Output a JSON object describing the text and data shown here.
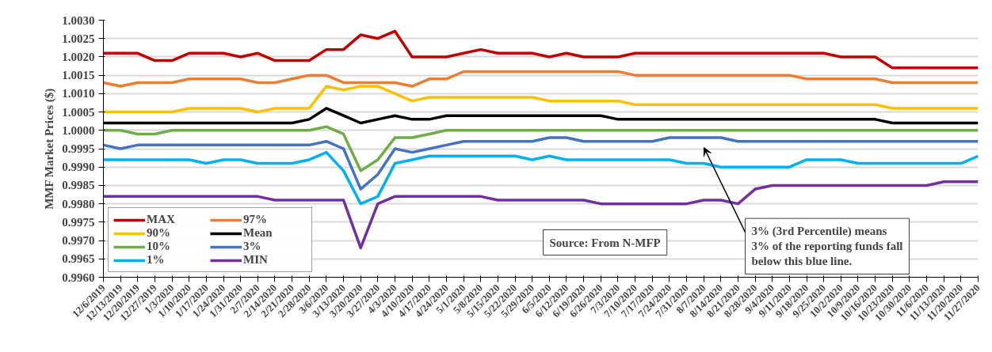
{
  "chart_data": {
    "type": "line",
    "ylabel": "MMF Market Prices ($)",
    "categories": [
      "12/6/2019",
      "12/13/2019",
      "12/20/2019",
      "12/27/2019",
      "1/3/2020",
      "1/10/2020",
      "1/17/2020",
      "1/24/2020",
      "1/31/2020",
      "2/7/2020",
      "2/14/2020",
      "2/21/2020",
      "2/28/2020",
      "3/6/2020",
      "3/13/2020",
      "3/20/2020",
      "3/27/2020",
      "4/3/2020",
      "4/10/2020",
      "4/17/2020",
      "4/24/2020",
      "5/1/2020",
      "5/8/2020",
      "5/15/2020",
      "5/22/2020",
      "5/29/2020",
      "6/5/2020",
      "6/12/2020",
      "6/19/2020",
      "6/26/2020",
      "7/3/2020",
      "7/10/2020",
      "7/17/2020",
      "7/24/2020",
      "7/31/2020",
      "8/7/2020",
      "8/14/2020",
      "8/21/2020",
      "8/28/2020",
      "9/4/2020",
      "9/11/2020",
      "9/18/2020",
      "9/25/2020",
      "10/2/2020",
      "10/9/2020",
      "10/16/2020",
      "10/23/2020",
      "10/30/2020",
      "11/6/2020",
      "11/13/2020",
      "11/20/2020",
      "11/27/2020"
    ],
    "series": [
      {
        "name": "MAX",
        "color": "#c00000",
        "values": [
          1.0021,
          1.0021,
          1.0021,
          1.0019,
          1.0019,
          1.0021,
          1.0021,
          1.0021,
          1.002,
          1.0021,
          1.0019,
          1.0019,
          1.0019,
          1.0022,
          1.0022,
          1.0026,
          1.0025,
          1.0027,
          1.002,
          1.002,
          1.002,
          1.0021,
          1.0022,
          1.0021,
          1.0021,
          1.0021,
          1.002,
          1.0021,
          1.002,
          1.002,
          1.002,
          1.0021,
          1.0021,
          1.0021,
          1.0021,
          1.0021,
          1.0021,
          1.0021,
          1.0021,
          1.0021,
          1.0021,
          1.0021,
          1.0021,
          1.002,
          1.002,
          1.002,
          1.0017,
          1.0017,
          1.0017,
          1.0017,
          1.0017,
          1.0017
        ]
      },
      {
        "name": "97%",
        "color": "#ed7d31",
        "values": [
          1.0013,
          1.0012,
          1.0013,
          1.0013,
          1.0013,
          1.0014,
          1.0014,
          1.0014,
          1.0014,
          1.0013,
          1.0013,
          1.0014,
          1.0015,
          1.0015,
          1.0013,
          1.0013,
          1.0013,
          1.0013,
          1.0012,
          1.0014,
          1.0014,
          1.0016,
          1.0016,
          1.0016,
          1.0016,
          1.0016,
          1.0016,
          1.0016,
          1.0016,
          1.0016,
          1.0016,
          1.0015,
          1.0015,
          1.0015,
          1.0015,
          1.0015,
          1.0015,
          1.0015,
          1.0015,
          1.0015,
          1.0015,
          1.0014,
          1.0014,
          1.0014,
          1.0014,
          1.0014,
          1.0013,
          1.0013,
          1.0013,
          1.0013,
          1.0013,
          1.0013
        ]
      },
      {
        "name": "90%",
        "color": "#ffc000",
        "values": [
          1.0005,
          1.0005,
          1.0005,
          1.0005,
          1.0005,
          1.0006,
          1.0006,
          1.0006,
          1.0006,
          1.0005,
          1.0006,
          1.0006,
          1.0006,
          1.0012,
          1.0011,
          1.0012,
          1.0012,
          1.001,
          1.0008,
          1.0009,
          1.0009,
          1.0009,
          1.0009,
          1.0009,
          1.0009,
          1.0009,
          1.0008,
          1.0008,
          1.0008,
          1.0008,
          1.0008,
          1.0007,
          1.0007,
          1.0007,
          1.0007,
          1.0007,
          1.0007,
          1.0007,
          1.0007,
          1.0007,
          1.0007,
          1.0007,
          1.0007,
          1.0007,
          1.0007,
          1.0007,
          1.0006,
          1.0006,
          1.0006,
          1.0006,
          1.0006,
          1.0006
        ]
      },
      {
        "name": "Mean",
        "color": "#000000",
        "values": [
          1.0002,
          1.0002,
          1.0002,
          1.0002,
          1.0002,
          1.0002,
          1.0002,
          1.0002,
          1.0002,
          1.0002,
          1.0002,
          1.0002,
          1.0003,
          1.0006,
          1.0004,
          1.0002,
          1.0003,
          1.0004,
          1.0003,
          1.0003,
          1.0004,
          1.0004,
          1.0004,
          1.0004,
          1.0004,
          1.0004,
          1.0004,
          1.0004,
          1.0004,
          1.0004,
          1.0003,
          1.0003,
          1.0003,
          1.0003,
          1.0003,
          1.0003,
          1.0003,
          1.0003,
          1.0003,
          1.0003,
          1.0003,
          1.0003,
          1.0003,
          1.0003,
          1.0003,
          1.0003,
          1.0002,
          1.0002,
          1.0002,
          1.0002,
          1.0002,
          1.0002
        ]
      },
      {
        "name": "10%",
        "color": "#70ad47",
        "values": [
          1.0,
          1.0,
          0.9999,
          0.9999,
          1.0,
          1.0,
          1.0,
          1.0,
          1.0,
          1.0,
          1.0,
          1.0,
          1.0,
          1.0001,
          0.9999,
          0.9989,
          0.9992,
          0.9998,
          0.9998,
          0.9999,
          1.0,
          1.0,
          1.0,
          1.0,
          1.0,
          1.0,
          1.0,
          1.0,
          1.0,
          1.0,
          1.0,
          1.0,
          1.0,
          1.0,
          1.0,
          1.0,
          1.0,
          1.0,
          1.0,
          1.0,
          1.0,
          1.0,
          1.0,
          1.0,
          1.0,
          1.0,
          1.0,
          1.0,
          1.0,
          1.0,
          1.0,
          1.0
        ]
      },
      {
        "name": "3%",
        "color": "#4472c4",
        "values": [
          0.9996,
          0.9995,
          0.9996,
          0.9996,
          0.9996,
          0.9996,
          0.9996,
          0.9996,
          0.9996,
          0.9996,
          0.9996,
          0.9996,
          0.9996,
          0.9997,
          0.9995,
          0.9984,
          0.9988,
          0.9995,
          0.9994,
          0.9995,
          0.9996,
          0.9997,
          0.9997,
          0.9997,
          0.9997,
          0.9997,
          0.9998,
          0.9998,
          0.9997,
          0.9997,
          0.9997,
          0.9997,
          0.9997,
          0.9998,
          0.9998,
          0.9998,
          0.9998,
          0.9997,
          0.9997,
          0.9997,
          0.9997,
          0.9997,
          0.9997,
          0.9997,
          0.9997,
          0.9997,
          0.9997,
          0.9997,
          0.9997,
          0.9997,
          0.9997,
          0.9997
        ]
      },
      {
        "name": "1%",
        "color": "#00b0f0",
        "values": [
          0.9992,
          0.9992,
          0.9992,
          0.9992,
          0.9992,
          0.9992,
          0.9991,
          0.9992,
          0.9992,
          0.9991,
          0.9991,
          0.9991,
          0.9992,
          0.9994,
          0.9989,
          0.998,
          0.9982,
          0.9991,
          0.9992,
          0.9993,
          0.9993,
          0.9993,
          0.9993,
          0.9993,
          0.9993,
          0.9992,
          0.9993,
          0.9992,
          0.9992,
          0.9992,
          0.9992,
          0.9992,
          0.9992,
          0.9992,
          0.9991,
          0.9991,
          0.999,
          0.999,
          0.999,
          0.999,
          0.999,
          0.9992,
          0.9992,
          0.9992,
          0.9991,
          0.9991,
          0.9991,
          0.9991,
          0.9991,
          0.9991,
          0.9991,
          0.9993
        ]
      },
      {
        "name": "MIN",
        "color": "#7030a0",
        "values": [
          0.9982,
          0.9982,
          0.9982,
          0.9982,
          0.9982,
          0.9982,
          0.9982,
          0.9982,
          0.9982,
          0.9982,
          0.9981,
          0.9981,
          0.9981,
          0.9981,
          0.9981,
          0.9968,
          0.998,
          0.9982,
          0.9982,
          0.9982,
          0.9982,
          0.9982,
          0.9982,
          0.9981,
          0.9981,
          0.9981,
          0.9981,
          0.9981,
          0.9981,
          0.998,
          0.998,
          0.998,
          0.998,
          0.998,
          0.998,
          0.9981,
          0.9981,
          0.998,
          0.9984,
          0.9985,
          0.9985,
          0.9985,
          0.9985,
          0.9985,
          0.9985,
          0.9985,
          0.9985,
          0.9985,
          0.9985,
          0.9986,
          0.9986,
          0.9986
        ]
      }
    ],
    "ylim": [
      0.996,
      1.003
    ],
    "yticks": [
      {
        "value": 0.996,
        "label": "0.9960"
      },
      {
        "value": 0.9965,
        "label": "0.9965"
      },
      {
        "value": 0.997,
        "label": "0.9970"
      },
      {
        "value": 0.9975,
        "label": "0.9975"
      },
      {
        "value": 0.998,
        "label": "0.9980"
      },
      {
        "value": 0.9985,
        "label": "0.9985"
      },
      {
        "value": 0.999,
        "label": "0.9990"
      },
      {
        "value": 0.9995,
        "label": "0.9995"
      },
      {
        "value": 1.0,
        "label": "1.0000"
      },
      {
        "value": 1.0005,
        "label": "1.0005"
      },
      {
        "value": 1.001,
        "label": "1.0010"
      },
      {
        "value": 1.0015,
        "label": "1.0015"
      },
      {
        "value": 1.002,
        "label": "1.0020"
      },
      {
        "value": 1.0025,
        "label": "1.0025"
      },
      {
        "value": 1.003,
        "label": "1.0030"
      }
    ],
    "grid": "y",
    "legend": "bottom left",
    "line_style": "solid",
    "marker": "none",
    "annotations": [
      "Source: From N-MFP",
      "3% (3rd Percentile) means\n3% of the reporting funds fall\nbelow this blue line."
    ]
  }
}
